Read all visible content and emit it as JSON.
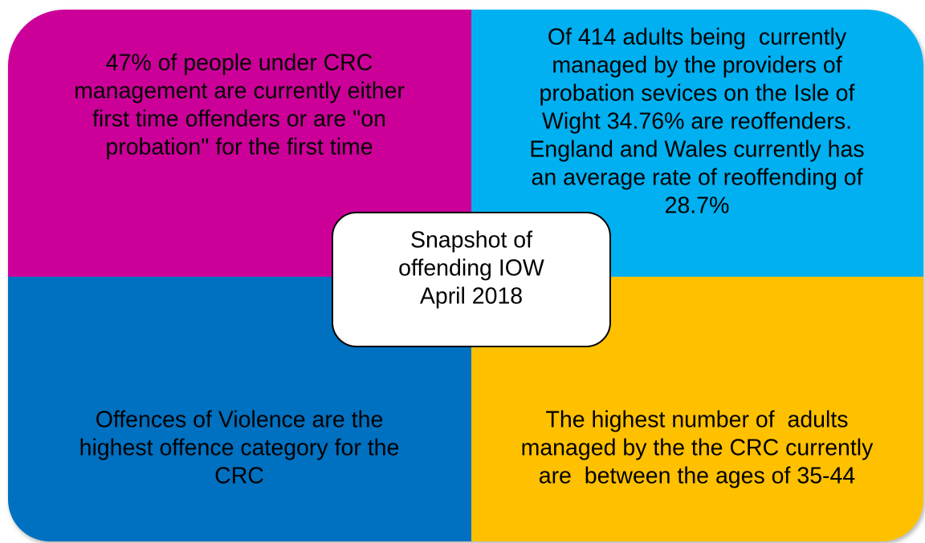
{
  "quadrants": [
    {
      "lines": [
        "47% of people under CRC",
        "management are currently either",
        "first time offenders or are \"on",
        "probation\" for the first time"
      ]
    },
    {
      "lines": [
        "Of 414 adults being  currently",
        "managed by the providers of",
        "probation sevices on the Isle of",
        "Wight 34.76% are reoffenders.",
        "England and Wales currently has",
        "an average rate of reoffending of",
        "28.7%"
      ]
    },
    {
      "lines": [
        "Offences of Violence are the",
        "highest offence category for the",
        "CRC"
      ]
    },
    {
      "lines": [
        "The highest number of  adults",
        "managed by the the CRC currently",
        "are  between the ages of 35-44"
      ]
    }
  ],
  "center": {
    "lines": [
      "Snapshot of",
      "offending IOW",
      "April 2018"
    ]
  }
}
